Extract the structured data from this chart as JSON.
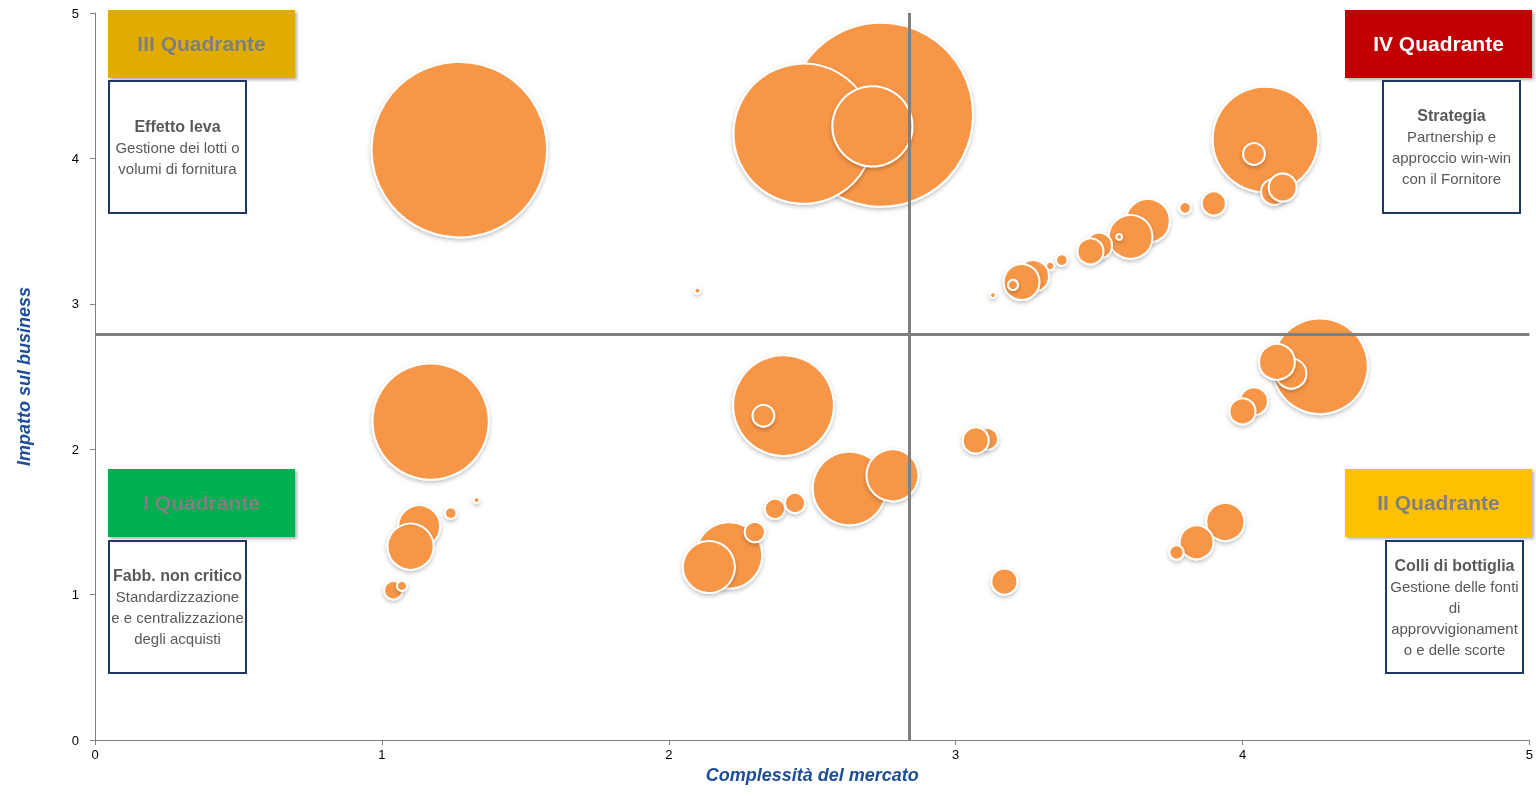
{
  "chart_data": {
    "type": "bubble",
    "xlabel": "Complessità del mercato",
    "ylabel": "Impatto sul business",
    "color": "#f79646",
    "x": [
      2.74,
      1.27,
      2.47,
      2.71,
      4.08,
      4.04,
      4.11,
      4.14,
      3.9,
      3.8,
      3.67,
      3.61,
      3.57,
      3.5,
      3.47,
      3.37,
      3.33,
      3.27,
      3.23,
      3.2,
      3.13,
      2.1,
      4.27,
      4.17,
      4.12,
      4.04,
      4.0,
      3.11,
      3.07,
      3.94,
      3.84,
      3.77,
      3.17,
      1.17,
      1.13,
      1.1,
      1.24,
      1.33,
      1.04,
      1.07,
      2.4,
      2.33,
      2.63,
      2.78,
      2.21,
      2.14,
      2.3,
      2.37,
      2.44
    ],
    "values": [
      4.3,
      4.06,
      4.17,
      4.22,
      4.13,
      4.03,
      3.77,
      3.8,
      3.69,
      3.66,
      3.57,
      3.46,
      3.46,
      3.4,
      3.36,
      3.3,
      3.26,
      3.19,
      3.15,
      3.13,
      3.06,
      3.09,
      2.57,
      2.52,
      2.6,
      2.33,
      2.26,
      2.07,
      2.06,
      1.5,
      1.36,
      1.29,
      1.09,
      2.19,
      1.47,
      1.33,
      1.56,
      1.65,
      1.03,
      1.06,
      2.3,
      2.23,
      1.73,
      1.82,
      1.27,
      1.19,
      1.43,
      1.59,
      1.63
    ],
    "sizes": [
      1,
      0.91,
      0.58,
      0.19,
      0.33,
      0.014,
      0.02,
      0.023,
      0.017,
      0.004,
      0.057,
      0.057,
      0.001,
      0.02,
      0.02,
      0.004,
      0.002,
      0.03,
      0.038,
      0.003,
      0.001,
      0.001,
      0.27,
      0.027,
      0.038,
      0.023,
      0.02,
      0.014,
      0.02,
      0.043,
      0.034,
      0.006,
      0.02,
      0.4,
      0.052,
      0.063,
      0.004,
      0.001,
      0.01,
      0.003,
      0.3,
      0.014,
      0.16,
      0.08,
      0.13,
      0.08,
      0.012,
      0.012,
      0.012
    ],
    "xlim": [
      0,
      5
    ],
    "ylim": [
      0,
      5
    ],
    "xticks": [
      0,
      1,
      2,
      3,
      4,
      5
    ],
    "yticks": [
      0,
      1,
      2,
      3,
      4,
      5
    ],
    "grid": false,
    "ref_lines": [
      {
        "axis": "x",
        "value": 2.84,
        "color": "#7f7f7f"
      },
      {
        "axis": "y",
        "value": 2.79,
        "color": "#7f7f7f"
      }
    ],
    "annotations": [
      "III Quadrante",
      "Effetto leva\nGestione dei lotti o volumi di fornitura",
      "IV Quadrante",
      "Strategia\nPartnership e approccio win-win con il Fornitore",
      "I Quadrante",
      "Fabb. non critico\nStandardizzazione e e centralizzazione degli acquisti",
      "II Quadrante",
      "Colli di bottiglia\nGestione delle fonti di approvvigionamento e delle scorte"
    ]
  }
}
